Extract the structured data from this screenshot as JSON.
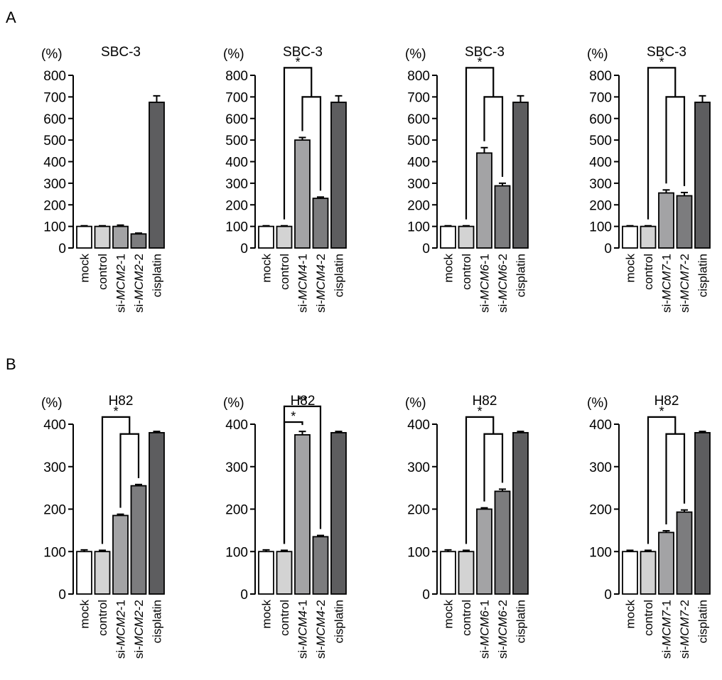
{
  "figure": {
    "panels": [
      {
        "letter": "A",
        "label": "panel-a"
      },
      {
        "letter": "B",
        "label": "panel-b"
      }
    ]
  },
  "chart_data": [
    {
      "type": "bar",
      "panel": "A",
      "title": "SBC-3",
      "ylabel": "(%)",
      "ylim": [
        0,
        800
      ],
      "yticks": [
        0,
        100,
        200,
        300,
        400,
        500,
        600,
        700,
        800
      ],
      "categories": [
        {
          "prefix": "",
          "gene": "",
          "suffix": "mock"
        },
        {
          "prefix": "",
          "gene": "",
          "suffix": "control"
        },
        {
          "prefix": "si-",
          "gene": "MCM2",
          "suffix": "-1"
        },
        {
          "prefix": "si-",
          "gene": "MCM2",
          "suffix": "-2"
        },
        {
          "prefix": "",
          "gene": "",
          "suffix": "cisplatin"
        }
      ],
      "values": [
        100,
        100,
        100,
        65,
        675
      ],
      "errors": [
        3,
        3,
        6,
        4,
        30
      ],
      "fills": [
        "#ffffff",
        "#d3d3d3",
        "#a3a3a5",
        "#7c7c7e",
        "#5d5d5f"
      ],
      "significance": []
    },
    {
      "type": "bar",
      "panel": "A",
      "title": "SBC-3",
      "ylabel": "(%)",
      "ylim": [
        0,
        800
      ],
      "yticks": [
        0,
        100,
        200,
        300,
        400,
        500,
        600,
        700,
        800
      ],
      "categories": [
        {
          "prefix": "",
          "gene": "",
          "suffix": "mock"
        },
        {
          "prefix": "",
          "gene": "",
          "suffix": "control"
        },
        {
          "prefix": "si-",
          "gene": "MCM4",
          "suffix": "-1"
        },
        {
          "prefix": "si-",
          "gene": "MCM4",
          "suffix": "-2"
        },
        {
          "prefix": "",
          "gene": "",
          "suffix": "cisplatin"
        }
      ],
      "values": [
        100,
        100,
        500,
        230,
        675
      ],
      "errors": [
        3,
        3,
        12,
        6,
        30
      ],
      "fills": [
        "#ffffff",
        "#d3d3d3",
        "#a3a3a5",
        "#7c7c7e",
        "#5d5d5f"
      ],
      "significance": [
        {
          "style": "nested",
          "from": 1,
          "to": [
            2,
            3
          ],
          "level": 835,
          "inner_level": 700,
          "label": "*"
        }
      ]
    },
    {
      "type": "bar",
      "panel": "A",
      "title": "SBC-3",
      "ylabel": "(%)",
      "ylim": [
        0,
        800
      ],
      "yticks": [
        0,
        100,
        200,
        300,
        400,
        500,
        600,
        700,
        800
      ],
      "categories": [
        {
          "prefix": "",
          "gene": "",
          "suffix": "mock"
        },
        {
          "prefix": "",
          "gene": "",
          "suffix": "control"
        },
        {
          "prefix": "si-",
          "gene": "MCM6",
          "suffix": "-1"
        },
        {
          "prefix": "si-",
          "gene": "MCM6",
          "suffix": "-2"
        },
        {
          "prefix": "",
          "gene": "",
          "suffix": "cisplatin"
        }
      ],
      "values": [
        100,
        100,
        440,
        288,
        675
      ],
      "errors": [
        3,
        3,
        25,
        12,
        30
      ],
      "fills": [
        "#ffffff",
        "#d3d3d3",
        "#a3a3a5",
        "#7c7c7e",
        "#5d5d5f"
      ],
      "significance": [
        {
          "style": "nested",
          "from": 1,
          "to": [
            2,
            3
          ],
          "level": 835,
          "inner_level": 700,
          "label": "*"
        }
      ]
    },
    {
      "type": "bar",
      "panel": "A",
      "title": "SBC-3",
      "ylabel": "(%)",
      "ylim": [
        0,
        800
      ],
      "yticks": [
        0,
        100,
        200,
        300,
        400,
        500,
        600,
        700,
        800
      ],
      "categories": [
        {
          "prefix": "",
          "gene": "",
          "suffix": "mock"
        },
        {
          "prefix": "",
          "gene": "",
          "suffix": "control"
        },
        {
          "prefix": "si-",
          "gene": "MCM7",
          "suffix": "-1"
        },
        {
          "prefix": "si-",
          "gene": "MCM7",
          "suffix": "-2"
        },
        {
          "prefix": "",
          "gene": "",
          "suffix": "cisplatin"
        }
      ],
      "values": [
        100,
        100,
        255,
        242,
        675
      ],
      "errors": [
        3,
        3,
        14,
        15,
        30
      ],
      "fills": [
        "#ffffff",
        "#d3d3d3",
        "#a3a3a5",
        "#7c7c7e",
        "#5d5d5f"
      ],
      "significance": [
        {
          "style": "nested",
          "from": 1,
          "to": [
            2,
            3
          ],
          "level": 835,
          "inner_level": 700,
          "label": "*"
        }
      ]
    },
    {
      "type": "bar",
      "panel": "B",
      "title": "H82",
      "ylabel": "(%)",
      "ylim": [
        0,
        400
      ],
      "yticks": [
        0,
        100,
        200,
        300,
        400
      ],
      "categories": [
        {
          "prefix": "",
          "gene": "",
          "suffix": "mock"
        },
        {
          "prefix": "",
          "gene": "",
          "suffix": "control"
        },
        {
          "prefix": "si-",
          "gene": "MCM2",
          "suffix": "-1"
        },
        {
          "prefix": "si-",
          "gene": "MCM2",
          "suffix": "-2"
        },
        {
          "prefix": "",
          "gene": "",
          "suffix": "cisplatin"
        }
      ],
      "values": [
        100,
        100,
        185,
        255,
        380
      ],
      "errors": [
        4,
        3,
        3,
        3,
        3
      ],
      "fills": [
        "#ffffff",
        "#d3d3d3",
        "#a3a3a5",
        "#7c7c7e",
        "#5d5d5f"
      ],
      "significance": [
        {
          "style": "nested",
          "from": 1,
          "to": [
            2,
            3
          ],
          "level": 417,
          "inner_level": 377,
          "label": "*"
        }
      ]
    },
    {
      "type": "bar",
      "panel": "B",
      "title": "H82",
      "ylabel": "(%)",
      "ylim": [
        0,
        400
      ],
      "yticks": [
        0,
        100,
        200,
        300,
        400
      ],
      "categories": [
        {
          "prefix": "",
          "gene": "",
          "suffix": "mock"
        },
        {
          "prefix": "",
          "gene": "",
          "suffix": "control"
        },
        {
          "prefix": "si-",
          "gene": "MCM4",
          "suffix": "-1"
        },
        {
          "prefix": "si-",
          "gene": "MCM4",
          "suffix": "-2"
        },
        {
          "prefix": "",
          "gene": "",
          "suffix": "cisplatin"
        }
      ],
      "values": [
        100,
        100,
        375,
        135,
        380
      ],
      "errors": [
        4,
        3,
        8,
        3,
        3
      ],
      "fills": [
        "#ffffff",
        "#d3d3d3",
        "#a3a3a5",
        "#7c7c7e",
        "#5d5d5f"
      ],
      "significance": [
        {
          "style": "pair",
          "from": 1,
          "to": 2,
          "level": 405,
          "label": "*"
        },
        {
          "style": "pair",
          "from": 1,
          "to": 3,
          "level": 442,
          "label": "**"
        }
      ]
    },
    {
      "type": "bar",
      "panel": "B",
      "title": "H82",
      "ylabel": "(%)",
      "ylim": [
        0,
        400
      ],
      "yticks": [
        0,
        100,
        200,
        300,
        400
      ],
      "categories": [
        {
          "prefix": "",
          "gene": "",
          "suffix": "mock"
        },
        {
          "prefix": "",
          "gene": "",
          "suffix": "control"
        },
        {
          "prefix": "si-",
          "gene": "MCM6",
          "suffix": "-1"
        },
        {
          "prefix": "si-",
          "gene": "MCM6",
          "suffix": "-2"
        },
        {
          "prefix": "",
          "gene": "",
          "suffix": "cisplatin"
        }
      ],
      "values": [
        100,
        100,
        200,
        242,
        380
      ],
      "errors": [
        4,
        3,
        3,
        5,
        3
      ],
      "fills": [
        "#ffffff",
        "#d3d3d3",
        "#a3a3a5",
        "#7c7c7e",
        "#5d5d5f"
      ],
      "significance": [
        {
          "style": "nested",
          "from": 1,
          "to": [
            2,
            3
          ],
          "level": 417,
          "inner_level": 377,
          "label": "*"
        }
      ]
    },
    {
      "type": "bar",
      "panel": "B",
      "title": "H82",
      "ylabel": "(%)",
      "ylim": [
        0,
        400
      ],
      "yticks": [
        0,
        100,
        200,
        300,
        400
      ],
      "categories": [
        {
          "prefix": "",
          "gene": "",
          "suffix": "mock"
        },
        {
          "prefix": "",
          "gene": "",
          "suffix": "control"
        },
        {
          "prefix": "si-",
          "gene": "MCM7",
          "suffix": "-1"
        },
        {
          "prefix": "si-",
          "gene": "MCM7",
          "suffix": "-2"
        },
        {
          "prefix": "",
          "gene": "",
          "suffix": "cisplatin"
        }
      ],
      "values": [
        100,
        100,
        145,
        193,
        380
      ],
      "errors": [
        3,
        3,
        4,
        5,
        3
      ],
      "fills": [
        "#ffffff",
        "#d3d3d3",
        "#a3a3a5",
        "#7c7c7e",
        "#5d5d5f"
      ],
      "significance": [
        {
          "style": "nested",
          "from": 1,
          "to": [
            2,
            3
          ],
          "level": 417,
          "inner_level": 377,
          "label": "*"
        }
      ]
    }
  ]
}
